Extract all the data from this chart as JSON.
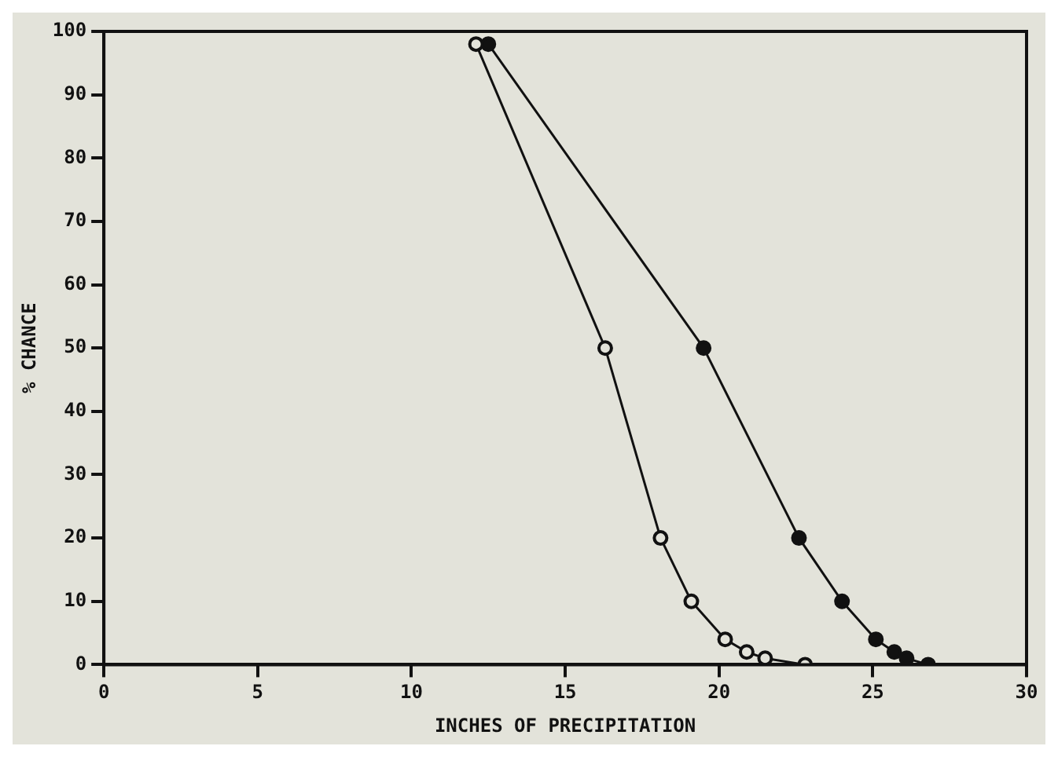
{
  "chart_data": {
    "type": "line",
    "xlabel": "INCHES OF PRECIPITATION",
    "ylabel": "% CHANCE",
    "xlim": [
      0,
      30
    ],
    "xticks": [
      0,
      5,
      10,
      15,
      20,
      25,
      30
    ],
    "ylim": [
      0,
      100
    ],
    "yticks": [
      0,
      10,
      20,
      30,
      40,
      50,
      60,
      70,
      80,
      90,
      100
    ],
    "grid": false,
    "legend": false,
    "marker": "circle",
    "line_style": "solid",
    "series": [
      {
        "color": "#111111",
        "x": [
          12.1,
          16.3,
          18.1,
          19.1,
          20.2,
          20.9,
          21.5,
          22.8
        ],
        "values": [
          98,
          50,
          20,
          10,
          4,
          2,
          1,
          0
        ],
        "marker": "circle_open"
      },
      {
        "color": "#111111",
        "x": [
          12.5,
          19.5,
          22.6,
          24.0,
          25.1,
          25.7,
          26.1,
          26.8
        ],
        "values": [
          98,
          50,
          20,
          10,
          4,
          2,
          1,
          0
        ]
      }
    ]
  }
}
